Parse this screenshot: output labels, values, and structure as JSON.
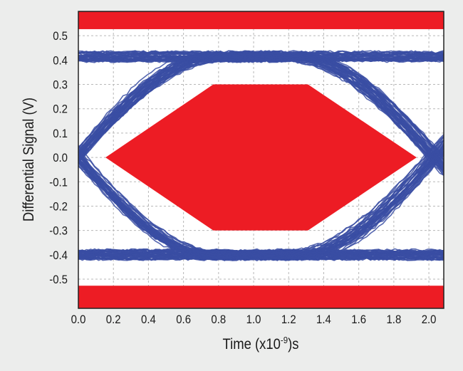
{
  "chart_data": {
    "type": "line",
    "title": "",
    "xlabel": "Time (x10",
    "xlabel_sup": "-9",
    "xlabel_suffix": ")s",
    "ylabel": "Differential Signal (V)",
    "xlim": [
      0.0,
      2.085
    ],
    "ylim": [
      -0.62,
      0.6
    ],
    "x_ticks": [
      "0.0",
      "0.2",
      "0.4",
      "0.6",
      "0.8",
      "1.0",
      "1.2",
      "1.4",
      "1.6",
      "1.8",
      "2.0"
    ],
    "y_ticks": [
      "0.5",
      "0.4",
      "0.3",
      "0.2",
      "0.1",
      "0.0",
      "-0.1",
      "-0.2",
      "-0.3",
      "-0.4",
      "-0.5"
    ],
    "grid": true,
    "eye": {
      "high_level": 0.415,
      "low_level": -0.4,
      "crossing_times": [
        0.0,
        2.03
      ],
      "transition_half_width": 0.8,
      "jitter": 0.035,
      "noise": 0.02,
      "trace_color": "#3a4ea3"
    },
    "mask": {
      "color": "#ed1c24",
      "center_polygon": [
        [
          0.155,
          0.0
        ],
        [
          0.77,
          0.3
        ],
        [
          1.31,
          0.3
        ],
        [
          1.93,
          0.0
        ],
        [
          1.31,
          -0.3
        ],
        [
          0.77,
          -0.3
        ]
      ],
      "upper_limit": 0.527,
      "lower_limit": -0.527
    }
  }
}
